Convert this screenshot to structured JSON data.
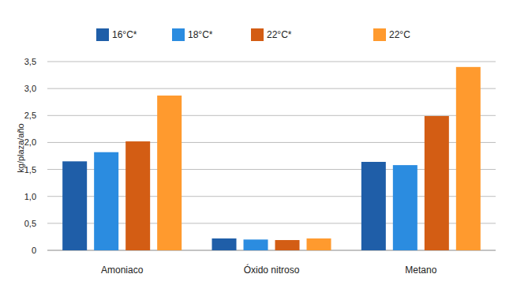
{
  "chart_data": {
    "type": "bar",
    "y_label": "kg/plaza/año",
    "categories": [
      "Amoniaco",
      "Óxido nitroso",
      "Metano"
    ],
    "series": [
      {
        "name": "16°C*",
        "color": "#1f5ea8",
        "values": [
          1.65,
          0.22,
          1.64
        ]
      },
      {
        "name": "18°C*",
        "color": "#2b8ce0",
        "values": [
          1.82,
          0.2,
          1.58
        ]
      },
      {
        "name": "22°C*",
        "color": "#d35d14",
        "values": [
          2.02,
          0.19,
          2.49
        ]
      },
      {
        "name": "22°C",
        "color": "#ff9a2e",
        "values": [
          2.87,
          0.22,
          3.4
        ]
      }
    ],
    "ylim": [
      0,
      3.5
    ],
    "yticks": [
      0,
      {
        "value": 0.5,
        "label": "0,5"
      },
      {
        "value": 1,
        "label": "1,0"
      },
      {
        "value": 1.5,
        "label": "1,5"
      },
      {
        "value": 2,
        "label": "2,0"
      },
      {
        "value": 2.5,
        "label": "2,5"
      },
      {
        "value": 3,
        "label": "3,0"
      },
      {
        "value": 3.5,
        "label": "3,5"
      }
    ],
    "grid": true,
    "legend": "top"
  }
}
